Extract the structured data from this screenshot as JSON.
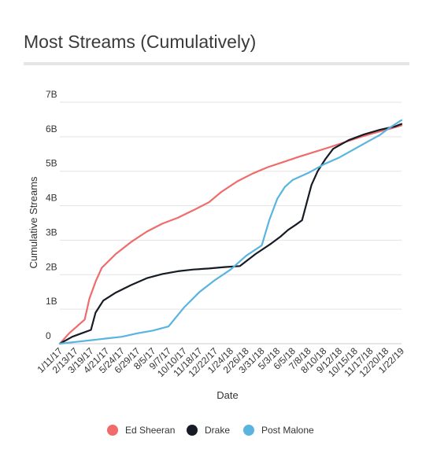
{
  "chart_data": {
    "type": "line",
    "title": "Most Streams (Cumulatively)",
    "xlabel": "Date",
    "ylabel": "Cumulative Streams",
    "y_ticks": [
      {
        "value": 0,
        "label": "0"
      },
      {
        "value": 1,
        "label": "1B"
      },
      {
        "value": 2,
        "label": "2B"
      },
      {
        "value": 3,
        "label": "3B"
      },
      {
        "value": 4,
        "label": "4B"
      },
      {
        "value": 5,
        "label": "5B"
      },
      {
        "value": 6,
        "label": "6B"
      },
      {
        "value": 7,
        "label": "7B"
      }
    ],
    "ylim": [
      0,
      7
    ],
    "x_ticks": [
      "1/11/17",
      "2/13/17",
      "3/19/17",
      "4/21/17",
      "5/24/17",
      "6/29/17",
      "8/5/17",
      "9/7/17",
      "10/10/17",
      "11/18/17",
      "12/22/17",
      "1/24/18",
      "2/26/18",
      "3/31/18",
      "5/3/18",
      "6/5/18",
      "7/8/18",
      "8/10/18",
      "9/12/18",
      "10/15/18",
      "11/17/18",
      "12/20/18",
      "1/22/19"
    ],
    "xlim": [
      0,
      22
    ],
    "grid": true,
    "legend_position": "bottom",
    "series": [
      {
        "name": "Ed Sheeran",
        "color": "#f06b6b",
        "points": [
          [
            0,
            0
          ],
          [
            0.6,
            0.3
          ],
          [
            1.6,
            0.7
          ],
          [
            1.9,
            1.3
          ],
          [
            2.3,
            1.8
          ],
          [
            2.7,
            2.2
          ],
          [
            3.6,
            2.6
          ],
          [
            4.6,
            2.95
          ],
          [
            5.6,
            3.25
          ],
          [
            6.6,
            3.48
          ],
          [
            7.6,
            3.65
          ],
          [
            8.6,
            3.87
          ],
          [
            9.6,
            4.1
          ],
          [
            10.4,
            4.4
          ],
          [
            11.4,
            4.7
          ],
          [
            12.4,
            4.93
          ],
          [
            13.4,
            5.12
          ],
          [
            14.4,
            5.27
          ],
          [
            15.4,
            5.42
          ],
          [
            16.4,
            5.56
          ],
          [
            17.4,
            5.7
          ],
          [
            18.4,
            5.85
          ],
          [
            19.4,
            6.0
          ],
          [
            20.4,
            6.13
          ],
          [
            21.4,
            6.25
          ],
          [
            22,
            6.33
          ]
        ]
      },
      {
        "name": "Drake",
        "color": "#161b26",
        "points": [
          [
            0,
            0
          ],
          [
            0.8,
            0.2
          ],
          [
            1.4,
            0.3
          ],
          [
            2.0,
            0.4
          ],
          [
            2.3,
            0.9
          ],
          [
            2.8,
            1.25
          ],
          [
            3.6,
            1.48
          ],
          [
            4.6,
            1.7
          ],
          [
            5.6,
            1.9
          ],
          [
            6.6,
            2.02
          ],
          [
            7.6,
            2.1
          ],
          [
            8.6,
            2.15
          ],
          [
            9.6,
            2.18
          ],
          [
            10.6,
            2.22
          ],
          [
            11.6,
            2.25
          ],
          [
            12.6,
            2.6
          ],
          [
            13.6,
            2.9
          ],
          [
            14.2,
            3.1
          ],
          [
            14.7,
            3.3
          ],
          [
            15.2,
            3.45
          ],
          [
            15.6,
            3.58
          ],
          [
            16.2,
            4.6
          ],
          [
            16.6,
            5.0
          ],
          [
            17.1,
            5.35
          ],
          [
            17.6,
            5.65
          ],
          [
            18.6,
            5.9
          ],
          [
            19.6,
            6.07
          ],
          [
            20.6,
            6.2
          ],
          [
            21.6,
            6.3
          ],
          [
            22,
            6.37
          ]
        ]
      },
      {
        "name": "Post Malone",
        "color": "#5ab4e0",
        "points": [
          [
            0,
            0
          ],
          [
            1,
            0.05
          ],
          [
            2,
            0.1
          ],
          [
            3,
            0.15
          ],
          [
            4,
            0.2
          ],
          [
            5,
            0.3
          ],
          [
            6,
            0.38
          ],
          [
            7,
            0.5
          ],
          [
            8,
            1.05
          ],
          [
            9,
            1.5
          ],
          [
            10,
            1.85
          ],
          [
            11,
            2.15
          ],
          [
            12,
            2.55
          ],
          [
            13,
            2.85
          ],
          [
            13.5,
            3.6
          ],
          [
            14,
            4.2
          ],
          [
            14.5,
            4.55
          ],
          [
            15,
            4.75
          ],
          [
            15.5,
            4.85
          ],
          [
            16,
            4.95
          ],
          [
            17,
            5.2
          ],
          [
            18,
            5.4
          ],
          [
            19,
            5.65
          ],
          [
            20,
            5.9
          ],
          [
            20.6,
            6.05
          ],
          [
            21.2,
            6.25
          ],
          [
            22,
            6.48
          ]
        ]
      }
    ]
  }
}
